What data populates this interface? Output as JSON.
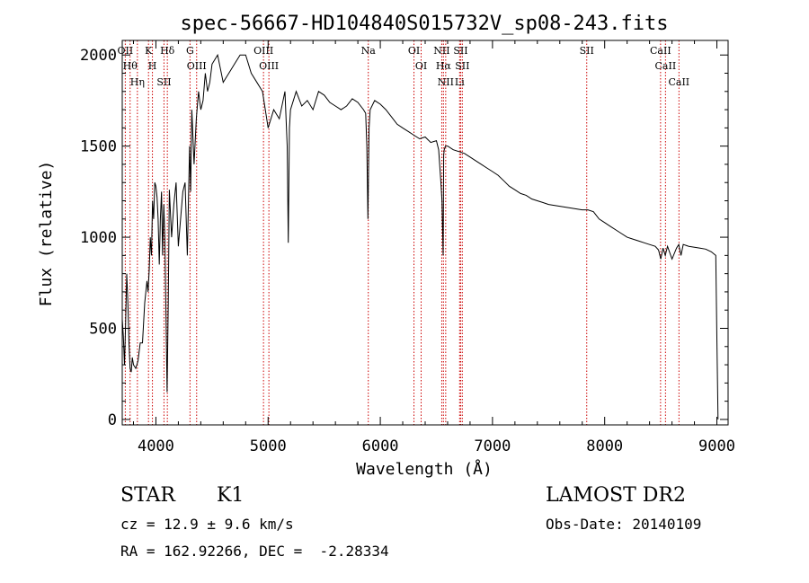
{
  "chart_data": {
    "type": "line",
    "title": "spec-56667-HD104840S015732V_sp08-243.fits",
    "xlabel": "Wavelength (Å)",
    "ylabel": "Flux (relative)",
    "xlim": [
      3700,
      9100
    ],
    "ylim": [
      -30,
      2080
    ],
    "xticks": [
      4000,
      5000,
      6000,
      7000,
      8000,
      9000
    ],
    "xtick_labels": [
      "4000",
      "5000",
      "6000",
      "7000",
      "8000",
      "9000"
    ],
    "yticks": [
      0,
      500,
      1000,
      1500,
      2000
    ],
    "ytick_labels": [
      "0",
      "500",
      "1000",
      "1500",
      "2000"
    ],
    "line_color": "#000000",
    "marker_color": "#cc0000",
    "grid": false,
    "series": [
      {
        "x": [
          3700,
          3710,
          3720,
          3730,
          3740,
          3750,
          3760,
          3770,
          3780,
          3790,
          3800,
          3820,
          3840,
          3860,
          3880,
          3900,
          3920,
          3930,
          3940,
          3950,
          3960,
          3970,
          3980,
          3990,
          4000,
          4010,
          4020,
          4030,
          4040,
          4050,
          4060,
          4070,
          4080,
          4090,
          4100,
          4110,
          4120,
          4140,
          4160,
          4180,
          4200,
          4220,
          4240,
          4260,
          4280,
          4300,
          4310,
          4320,
          4340,
          4360,
          4380,
          4400,
          4420,
          4440,
          4460,
          4480,
          4500,
          4550,
          4600,
          4650,
          4700,
          4750,
          4800,
          4850,
          4900,
          4950,
          5000,
          5050,
          5100,
          5150,
          5170,
          5180,
          5190,
          5200,
          5250,
          5300,
          5350,
          5400,
          5450,
          5500,
          5550,
          5600,
          5650,
          5700,
          5750,
          5800,
          5850,
          5870,
          5880,
          5890,
          5900,
          5910,
          5950,
          6000,
          6050,
          6100,
          6150,
          6200,
          6250,
          6300,
          6350,
          6400,
          6450,
          6500,
          6520,
          6540,
          6550,
          6560,
          6565,
          6570,
          6580,
          6600,
          6650,
          6700,
          6750,
          6800,
          6850,
          6900,
          6950,
          7000,
          7050,
          7100,
          7150,
          7200,
          7250,
          7300,
          7350,
          7400,
          7450,
          7500,
          7550,
          7600,
          7650,
          7700,
          7750,
          7800,
          7850,
          7900,
          7950,
          8000,
          8050,
          8100,
          8150,
          8200,
          8250,
          8300,
          8350,
          8400,
          8450,
          8480,
          8500,
          8520,
          8540,
          8560,
          8600,
          8640,
          8660,
          8680,
          8700,
          8750,
          8800,
          8850,
          8900,
          8950,
          8990,
          9000,
          9010
        ],
        "y": [
          550,
          460,
          300,
          520,
          800,
          650,
          420,
          280,
          260,
          340,
          300,
          280,
          320,
          420,
          420,
          640,
          760,
          700,
          820,
          1000,
          900,
          1200,
          1100,
          1300,
          1280,
          1220,
          1100,
          850,
          1100,
          1250,
          900,
          1180,
          1000,
          560,
          150,
          640,
          1260,
          1000,
          1180,
          1300,
          950,
          1100,
          1250,
          1300,
          900,
          1500,
          1250,
          1700,
          1400,
          1650,
          1800,
          1700,
          1750,
          1900,
          1800,
          1850,
          1950,
          2000,
          1850,
          1900,
          1950,
          2000,
          2000,
          1900,
          1850,
          1800,
          1600,
          1700,
          1650,
          1800,
          1500,
          970,
          1600,
          1700,
          1800,
          1720,
          1750,
          1700,
          1800,
          1780,
          1740,
          1720,
          1700,
          1720,
          1760,
          1740,
          1700,
          1680,
          1500,
          1100,
          1600,
          1700,
          1750,
          1730,
          1700,
          1660,
          1620,
          1600,
          1580,
          1560,
          1540,
          1550,
          1520,
          1530,
          1480,
          1300,
          1200,
          900,
          1450,
          1480,
          1500,
          1500,
          1480,
          1470,
          1460,
          1440,
          1420,
          1400,
          1380,
          1360,
          1340,
          1310,
          1280,
          1260,
          1240,
          1230,
          1210,
          1200,
          1190,
          1180,
          1175,
          1170,
          1165,
          1160,
          1155,
          1150,
          1150,
          1140,
          1100,
          1080,
          1060,
          1040,
          1020,
          1000,
          990,
          980,
          970,
          960,
          950,
          930,
          880,
          940,
          900,
          950,
          880,
          940,
          960,
          900,
          960,
          950,
          945,
          940,
          935,
          920,
          900,
          450,
          0
        ]
      }
    ],
    "line_markers": [
      {
        "x": 3727,
        "label": "OII"
      },
      {
        "x": 3770,
        "label": "Hθ"
      },
      {
        "x": 3835,
        "label": "Hη"
      },
      {
        "x": 3934,
        "label": "K"
      },
      {
        "x": 3969,
        "label": "H"
      },
      {
        "x": 4072,
        "label": "SII"
      },
      {
        "x": 4102,
        "label": "Hδ"
      },
      {
        "x": 4304,
        "label": "G"
      },
      {
        "x": 4363,
        "label": "OIII"
      },
      {
        "x": 4959,
        "label": "OIII"
      },
      {
        "x": 5007,
        "label": "OIII"
      },
      {
        "x": 5893,
        "label": "Na"
      },
      {
        "x": 6300,
        "label": "OI"
      },
      {
        "x": 6364,
        "label": "OI"
      },
      {
        "x": 6548,
        "label": "NII"
      },
      {
        "x": 6563,
        "label": "Hα"
      },
      {
        "x": 6583,
        "label": "NII"
      },
      {
        "x": 6707,
        "label": "Li"
      },
      {
        "x": 6716,
        "label": "SII"
      },
      {
        "x": 6731,
        "label": "SII"
      },
      {
        "x": 7840,
        "label": "SII"
      },
      {
        "x": 8498,
        "label": "CaII"
      },
      {
        "x": 8542,
        "label": "CaII"
      },
      {
        "x": 8662,
        "label": "CaII"
      }
    ]
  },
  "info": {
    "object_class": "STAR",
    "subclass": "K1",
    "survey": "LAMOST DR2",
    "cz": "cz = 12.9 ± 9.6 km/s",
    "obs_date": "Obs-Date: 20140109",
    "radec": "RA = 162.92266, DEC =  -2.28334"
  }
}
